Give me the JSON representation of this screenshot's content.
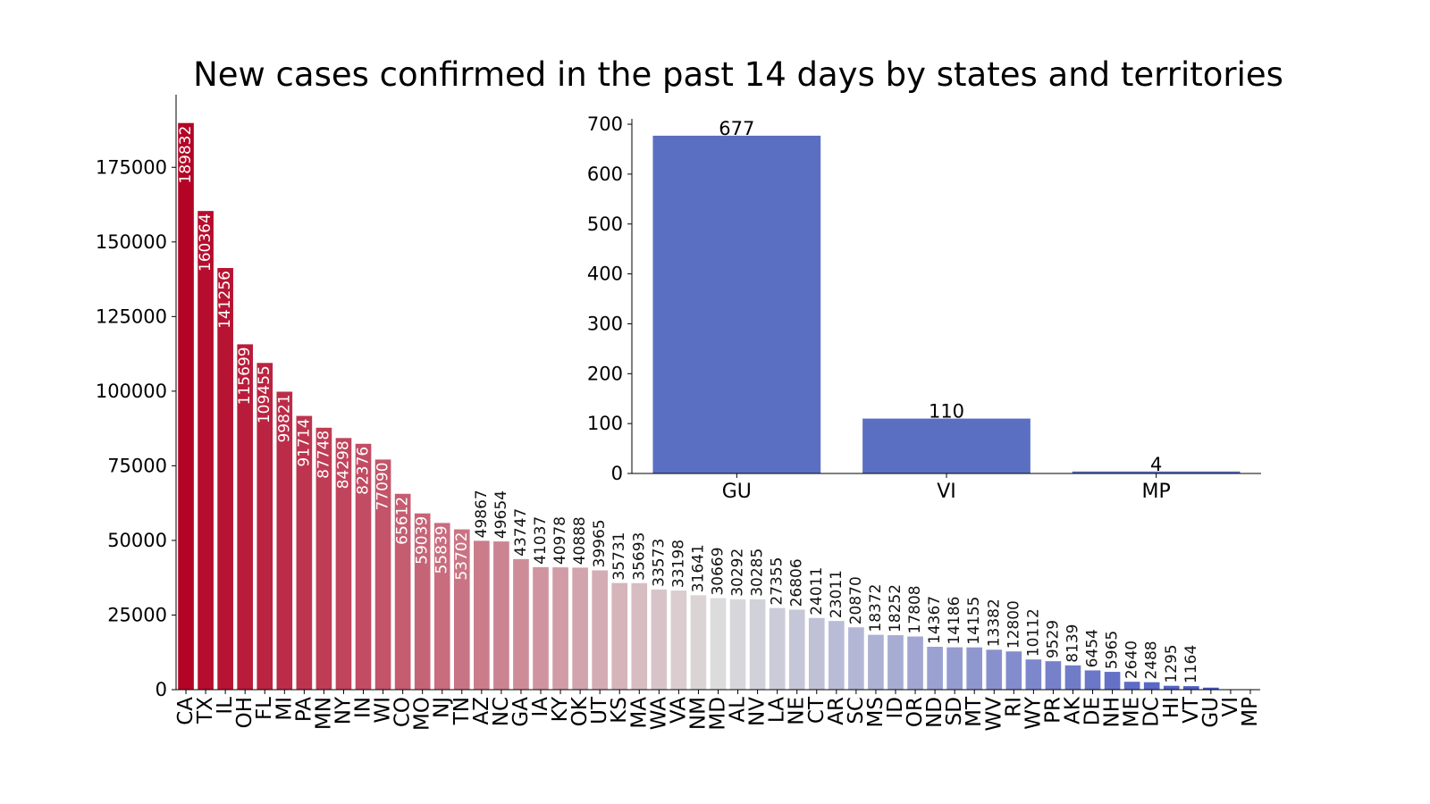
{
  "title": "New cases confirmed in the past 14 days by states and territories",
  "chart_data": [
    {
      "type": "bar",
      "title": "New cases confirmed in the past 14 days by states and territories",
      "xlabel": "",
      "ylabel": "",
      "ylim": [
        0,
        199324
      ],
      "yticks": [
        0,
        25000,
        50000,
        75000,
        100000,
        125000,
        150000,
        175000
      ],
      "grid": false,
      "legend": "none",
      "palette": [
        "#b40426",
        "#dddcdc",
        "#3b4cc0"
      ],
      "categories": [
        "CA",
        "TX",
        "IL",
        "OH",
        "FL",
        "MI",
        "PA",
        "MN",
        "NY",
        "IN",
        "WI",
        "CO",
        "MO",
        "NJ",
        "TN",
        "AZ",
        "NC",
        "GA",
        "IA",
        "KY",
        "OK",
        "UT",
        "KS",
        "MA",
        "WA",
        "VA",
        "NM",
        "MD",
        "AL",
        "NV",
        "LA",
        "NE",
        "CT",
        "AR",
        "SC",
        "MS",
        "ID",
        "OR",
        "ND",
        "SD",
        "MT",
        "WV",
        "RI",
        "WY",
        "PR",
        "AK",
        "DE",
        "NH",
        "ME",
        "DC",
        "HI",
        "VT",
        "GU",
        "VI",
        "MP"
      ],
      "values": [
        189832,
        160364,
        141256,
        115699,
        109455,
        99821,
        91714,
        87748,
        84298,
        82376,
        77090,
        65612,
        59039,
        55839,
        53702,
        49867,
        49654,
        43747,
        41037,
        40978,
        40888,
        39965,
        35731,
        35693,
        33573,
        33198,
        31641,
        30669,
        30292,
        30285,
        27355,
        26806,
        24011,
        23011,
        20870,
        18372,
        18252,
        17808,
        14367,
        14186,
        14155,
        13382,
        12800,
        10112,
        9529,
        8139,
        6454,
        5965,
        2640,
        2488,
        1295,
        1164,
        677,
        110,
        4
      ],
      "labels": [
        "189832",
        "160364",
        "141256",
        "115699",
        "109455",
        "99821",
        "91714",
        "87748",
        "84298",
        "82376",
        "77090",
        "65612",
        "59039",
        "55839",
        "53702",
        "49867",
        "49654",
        "43747",
        "41037",
        "40978",
        "40888",
        "39965",
        "35731",
        "35693",
        "33573",
        "33198",
        "31641",
        "30669",
        "30292",
        "30285",
        "27355",
        "26806",
        "24011",
        "23011",
        "20870",
        "18372",
        "18252",
        "17808",
        "14367",
        "14186",
        "14155",
        "13382",
        "12800",
        "10112",
        "9529",
        "8139",
        "6454",
        "5965",
        "2640",
        "2488",
        "1295",
        "1164",
        "",
        "",
        ""
      ]
    },
    {
      "type": "bar",
      "title": "",
      "xlabel": "",
      "ylabel": "",
      "ylim": [
        0,
        710.85
      ],
      "yticks": [
        0,
        100,
        200,
        300,
        400,
        500,
        600,
        700
      ],
      "grid": false,
      "legend": "none",
      "bar_color": "#5b6fc2",
      "categories": [
        "GU",
        "VI",
        "MP"
      ],
      "values": [
        677,
        110,
        4
      ],
      "labels": [
        "677",
        "110",
        "4"
      ]
    }
  ]
}
